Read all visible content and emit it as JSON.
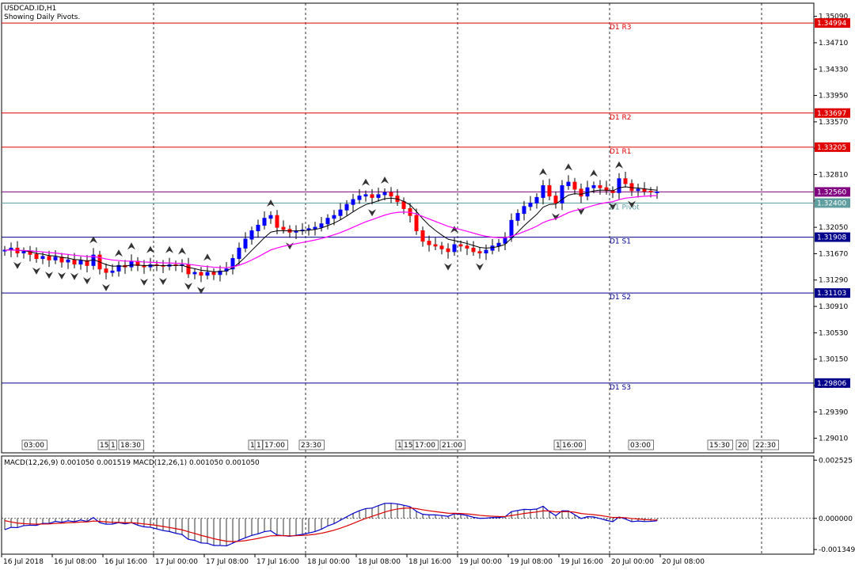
{
  "header": {
    "symbol": "USDCAD.ID,H1",
    "subtitle": "Showing Daily Pivots."
  },
  "price_axis": {
    "ticks": [
      "1.35090",
      "1.34710",
      "1.34330",
      "1.33950",
      "1.33570",
      "1.33190",
      "1.32810",
      "1.32430",
      "1.32050",
      "1.31670",
      "1.31290",
      "1.30910",
      "1.30530",
      "1.30150",
      "1.29770",
      "1.29390",
      "1.29010"
    ],
    "min": 1.288,
    "max": 1.3528
  },
  "pivot_levels": [
    {
      "name": "D1 R3",
      "value": 1.34994,
      "label": "1.34994",
      "color": "#e00000"
    },
    {
      "name": "D1 R2",
      "value": 1.33697,
      "label": "1.33697",
      "color": "#e00000"
    },
    {
      "name": "D1 R1",
      "value": 1.33205,
      "label": "1.33205",
      "color": "#e00000"
    },
    {
      "name": "D1 Pivot",
      "value": 1.324,
      "label": "1.32400",
      "color": "#5f9ea0"
    },
    {
      "name": "D1 S1",
      "value": 1.31908,
      "label": "1.31908",
      "color": "#00008b"
    },
    {
      "name": "D1 S2",
      "value": 1.31103,
      "label": "1.31103",
      "color": "#00008b"
    },
    {
      "name": "D1 S3",
      "value": 1.29806,
      "label": "1.29806",
      "color": "#00008b"
    }
  ],
  "current_price": {
    "label": "1.32560",
    "value": 1.3256,
    "color": "#800080"
  },
  "session_markers": [
    "03:00",
    "15:",
    "1",
    "18:30",
    "1",
    "1",
    "17:00",
    "23:30",
    "1",
    "15:",
    "17:00",
    "21:00",
    "1",
    "16:00",
    "03:00",
    "15:30",
    "20",
    "22:30"
  ],
  "macd": {
    "label": "MACD(12,26,9) 0.001050 0.001519 MACD(12,26,1) 0.001050 0.001050",
    "ticks": [
      "0.002525",
      "0.000000",
      "-0.001349"
    ],
    "min": -0.00155,
    "max": 0.0027
  },
  "time_axis": [
    "16 Jul 2018",
    "16 Jul 08:00",
    "16 Jul 16:00",
    "17 Jul 00:00",
    "17 Jul 08:00",
    "17 Jul 16:00",
    "18 Jul 00:00",
    "18 Jul 08:00",
    "18 Jul 16:00",
    "19 Jul 00:00",
    "19 Jul 08:00",
    "19 Jul 16:00",
    "20 Jul 00:00",
    "20 Jul 08:00"
  ],
  "colors": {
    "bull": "#0000ff",
    "bear": "#ff0000",
    "ma_fast": "#000000",
    "ma_slow": "#ff00ff",
    "macd_line": "#0000cc",
    "signal_line": "#dd0000",
    "grid": "#000000"
  },
  "chart_data": {
    "type": "candlestick",
    "timeframe": "H1",
    "close_series": [
      1.3172,
      1.3175,
      1.3168,
      1.317,
      1.3166,
      1.316,
      1.3163,
      1.3158,
      1.3162,
      1.3155,
      1.3158,
      1.3152,
      1.3157,
      1.315,
      1.3165,
      1.3145,
      1.314,
      1.3142,
      1.315,
      1.3148,
      1.3156,
      1.315,
      1.3148,
      1.3151,
      1.315,
      1.3149,
      1.3151,
      1.315,
      1.3151,
      1.3138,
      1.314,
      1.3136,
      1.314,
      1.3137,
      1.3142,
      1.3145,
      1.316,
      1.3175,
      1.3188,
      1.32,
      1.3208,
      1.3218,
      1.3222,
      1.3205,
      1.3202,
      1.3198,
      1.32,
      1.3201,
      1.3203,
      1.3205,
      1.321,
      1.3218,
      1.3222,
      1.323,
      1.3238,
      1.3245,
      1.325,
      1.3252,
      1.3248,
      1.3252,
      1.3255,
      1.325,
      1.3242,
      1.3232,
      1.3222,
      1.32,
      1.3185,
      1.318,
      1.3178,
      1.3174,
      1.317,
      1.318,
      1.3178,
      1.3175,
      1.317,
      1.3168,
      1.3172,
      1.3178,
      1.3182,
      1.319,
      1.3215,
      1.3225,
      1.3235,
      1.324,
      1.3248,
      1.3265,
      1.325,
      1.324,
      1.3265,
      1.327,
      1.326,
      1.325,
      1.3262,
      1.3265,
      1.3262,
      1.3258,
      1.3255,
      1.3275,
      1.3268,
      1.3258,
      1.326,
      1.3257,
      1.3256,
      1.3256
    ]
  }
}
